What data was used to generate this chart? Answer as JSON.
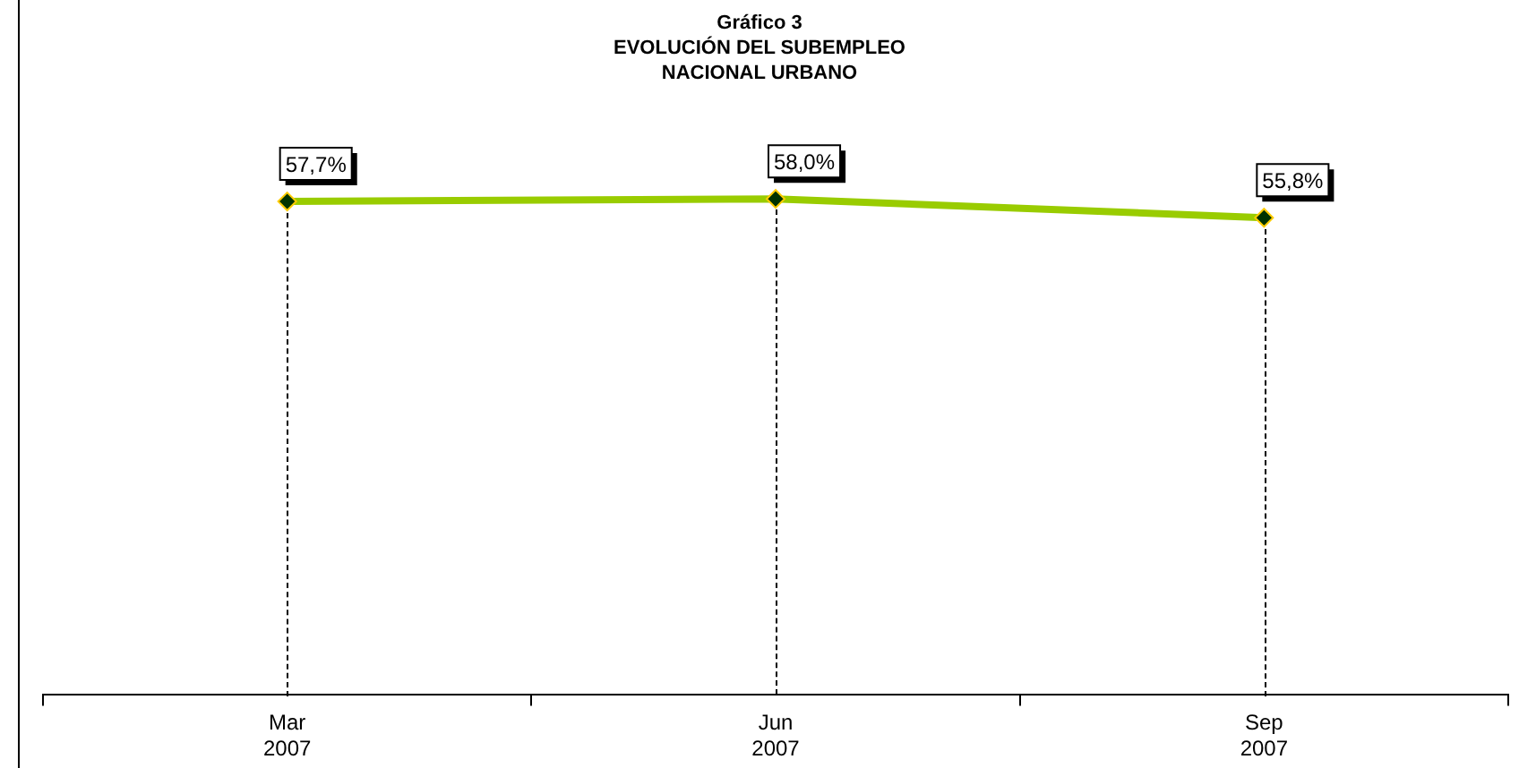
{
  "chart_data": {
    "type": "line",
    "title": "Gráfico 3",
    "subtitle": "EVOLUCIÓN DEL SUBEMPLEO NACIONAL URBANO",
    "categories": [
      "Mar 2007",
      "Jun 2007",
      "Sep 2007"
    ],
    "series": [
      {
        "color": "#99cc00",
        "values": [
          57.7,
          58.0,
          55.8
        ],
        "value_labels": [
          "57,7%",
          "58,0%",
          "55,8%"
        ]
      }
    ],
    "tick_labels": "x",
    "grid": "x",
    "legend": false,
    "marker": "diamond",
    "line_style": "solid"
  }
}
